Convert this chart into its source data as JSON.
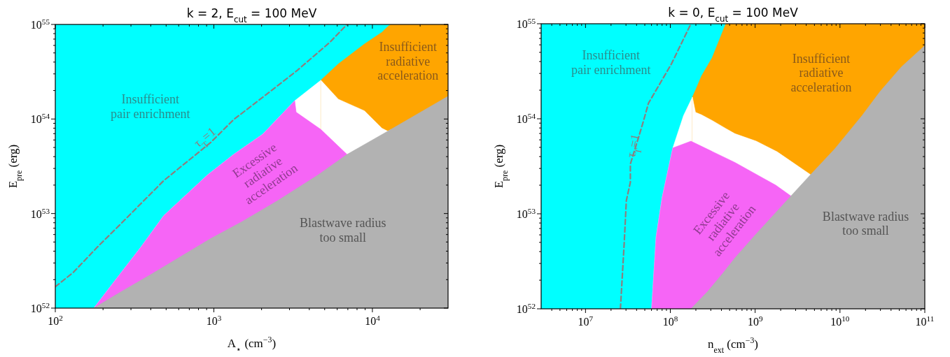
{
  "chart_data": [
    {
      "type": "area",
      "title": "k = 2, E$_{cut}$ = 100 MeV",
      "xlabel": "A$_{⋆}$ (cm$^{−3}$)",
      "ylabel": "E$_{pre}$ (erg)",
      "log": "xy",
      "xlim": [
        100,
        30000
      ],
      "ylim": [
        1e+52,
        1e+55
      ],
      "xticks": [
        {
          "value": 100,
          "label": "10$^{2}$"
        },
        {
          "value": 200,
          "label": null
        },
        {
          "value": 300,
          "label": null
        },
        {
          "value": 400,
          "label": null
        },
        {
          "value": 500,
          "label": null
        },
        {
          "value": 600,
          "label": null
        },
        {
          "value": 700,
          "label": null
        },
        {
          "value": 800,
          "label": null
        },
        {
          "value": 900,
          "label": null
        },
        {
          "value": 1000,
          "label": "10$^{3}$"
        },
        {
          "value": 2000,
          "label": null
        },
        {
          "value": 3000,
          "label": null
        },
        {
          "value": 4000,
          "label": null
        },
        {
          "value": 5000,
          "label": null
        },
        {
          "value": 6000,
          "label": null
        },
        {
          "value": 7000,
          "label": null
        },
        {
          "value": 8000,
          "label": null
        },
        {
          "value": 9000,
          "label": null
        },
        {
          "value": 10000,
          "label": "10$^{4}$"
        },
        {
          "value": 20000,
          "label": null
        }
      ],
      "yticks": [
        {
          "value": 1e+52,
          "label": "10$^{52}$"
        },
        {
          "value": 2e+52,
          "label": null
        },
        {
          "value": 3e+52,
          "label": null
        },
        {
          "value": 4e+52,
          "label": null
        },
        {
          "value": 5e+52,
          "label": null
        },
        {
          "value": 6e+52,
          "label": null
        },
        {
          "value": 7e+52,
          "label": null
        },
        {
          "value": 8e+52,
          "label": null
        },
        {
          "value": 9e+52,
          "label": null
        },
        {
          "value": 1e+53,
          "label": "10$^{53}$"
        },
        {
          "value": 2e+53,
          "label": null
        },
        {
          "value": 3e+53,
          "label": null
        },
        {
          "value": 4e+53,
          "label": null
        },
        {
          "value": 5e+53,
          "label": null
        },
        {
          "value": 6e+53,
          "label": null
        },
        {
          "value": 7e+53,
          "label": null
        },
        {
          "value": 8e+53,
          "label": null
        },
        {
          "value": 9e+53,
          "label": null
        },
        {
          "value": 1e+54,
          "label": "10$^{54}$"
        },
        {
          "value": 2e+54,
          "label": null
        },
        {
          "value": 3e+54,
          "label": null
        },
        {
          "value": 4e+54,
          "label": null
        },
        {
          "value": 5e+54,
          "label": null
        },
        {
          "value": 6e+54,
          "label": null
        },
        {
          "value": 7e+54,
          "label": null
        },
        {
          "value": 8e+54,
          "label": null
        },
        {
          "value": 9e+54,
          "label": null
        },
        {
          "value": 1e+55,
          "label": "10$^{55}$"
        }
      ],
      "series": [
        {
          "type": "area",
          "color": "#00ffff",
          "x": [
            100,
            13060
          ],
          "values": [
            1e+55,
            1e+55
          ]
        },
        {
          "type": "area",
          "color": "#ffffff",
          "x": [
            175,
            257,
            345,
            483,
            912,
            1334,
            2032,
            3236,
            4732
          ],
          "values": [
            1e+52,
            2.31e+52,
            4.37e+52,
            9.5e+52,
            2.56e+53,
            4.22e+53,
            6.9e+53,
            1.56e+54,
            2.57e+54
          ]
        },
        {
          "type": "area",
          "color": "#ffa500",
          "x": [
            4732,
            6095,
            8913,
            11480,
            12500,
            13060,
            30000
          ],
          "values": [
            2.57e+54,
            3.82e+54,
            6.22e+54,
            8.26e+54,
            9.5e+54,
            1e+55,
            1e+55
          ]
        },
        {
          "type": "area",
          "color": "#ffffff",
          "x": [
            4732,
            6095,
            8913,
            11480,
            12500,
            13060
          ],
          "values": [
            2.57e+54,
            1.62e+54,
            1.22e+54,
            7.98e+53,
            7.43e+53,
            7.69e+53
          ]
        },
        {
          "type": "area",
          "color": "#f665f6",
          "x": [
            175,
            257,
            345,
            483,
            912,
            1334,
            2032,
            3236,
            3304,
            4732,
            6918
          ],
          "values": [
            1e+52,
            2.31e+52,
            4.37e+52,
            9.5e+52,
            2.56e+53,
            4.22e+53,
            6.9e+53,
            1.56e+54,
            1.18e+54,
            7.75e+53,
            4.22e+53
          ]
        },
        {
          "type": "area",
          "color": "#b2b2b2",
          "x": [
            175,
            246,
            408,
            622,
            950,
            1514,
            2512,
            4540,
            6918,
            12500,
            30000
          ],
          "values": [
            1e+52,
            1.41e+52,
            2.31e+52,
            3.53e+52,
            5.41e+52,
            8.26e+52,
            1.36e+53,
            2.56e+53,
            4.22e+53,
            7.43e+53,
            1.74e+54
          ]
        },
        {
          "type": "line",
          "color": "#8c7f7f",
          "line_style": "dashed",
          "x": [
            100,
            130,
            183,
            257,
            483,
            950,
            1334,
            2307,
            3373,
            5370,
            6918
          ],
          "values": [
            1.68e+52,
            2.39e+52,
            4.37e+52,
            7.69e+52,
            2.23e+53,
            5.6e+53,
            9.86e+53,
            2e+54,
            3.29e+54,
            6.44e+54,
            1e+55
          ]
        }
      ],
      "annotations": [
        "Insufficient\npair enrichment",
        "τ$_{T}$=1",
        "Excessive\nradiative\nacceleration",
        "Insufficient\nradiative\nacceleration",
        "Blastwave radius\ntoo small"
      ]
    },
    {
      "type": "area",
      "title": "k = 0, E$_{cut}$ = 100 MeV",
      "xlabel": "n$_{ext}$ (cm$^{−3}$)",
      "ylabel": "E$_{pre}$ (erg)",
      "log": "xy",
      "xlim": [
        3000000.0,
        100000000000.0
      ],
      "ylim": [
        1e+52,
        1e+55
      ],
      "xticks": [
        {
          "value": 4000000.0,
          "label": null
        },
        {
          "value": 5000000.0,
          "label": null
        },
        {
          "value": 6000000.0,
          "label": null
        },
        {
          "value": 7000000.0,
          "label": null
        },
        {
          "value": 8000000.0,
          "label": null
        },
        {
          "value": 9000000.0,
          "label": null
        },
        {
          "value": 10000000.0,
          "label": "10$^{7}$"
        },
        {
          "value": 20000000.0,
          "label": null
        },
        {
          "value": 30000000.0,
          "label": null
        },
        {
          "value": 40000000.0,
          "label": null
        },
        {
          "value": 50000000.0,
          "label": null
        },
        {
          "value": 60000000.0,
          "label": null
        },
        {
          "value": 70000000.0,
          "label": null
        },
        {
          "value": 80000000.0,
          "label": null
        },
        {
          "value": 90000000.0,
          "label": null
        },
        {
          "value": 100000000.0,
          "label": "10$^{8}$"
        },
        {
          "value": 200000000.0,
          "label": null
        },
        {
          "value": 300000000.0,
          "label": null
        },
        {
          "value": 400000000.0,
          "label": null
        },
        {
          "value": 500000000.0,
          "label": null
        },
        {
          "value": 600000000.0,
          "label": null
        },
        {
          "value": 700000000.0,
          "label": null
        },
        {
          "value": 800000000.0,
          "label": null
        },
        {
          "value": 900000000.0,
          "label": null
        },
        {
          "value": 1000000000.0,
          "label": "10$^{9}$"
        },
        {
          "value": 2000000000.0,
          "label": null
        },
        {
          "value": 3000000000.0,
          "label": null
        },
        {
          "value": 4000000000.0,
          "label": null
        },
        {
          "value": 5000000000.0,
          "label": null
        },
        {
          "value": 6000000000.0,
          "label": null
        },
        {
          "value": 7000000000.0,
          "label": null
        },
        {
          "value": 8000000000.0,
          "label": null
        },
        {
          "value": 9000000000.0,
          "label": null
        },
        {
          "value": 10000000000.0,
          "label": "10$^{10}$"
        },
        {
          "value": 20000000000.0,
          "label": null
        },
        {
          "value": 30000000000.0,
          "label": null
        },
        {
          "value": 40000000000.0,
          "label": null
        },
        {
          "value": 50000000000.0,
          "label": null
        },
        {
          "value": 60000000000.0,
          "label": null
        },
        {
          "value": 70000000000.0,
          "label": null
        },
        {
          "value": 80000000000.0,
          "label": null
        },
        {
          "value": 90000000000.0,
          "label": null
        },
        {
          "value": 100000000000.0,
          "label": "10$^{11}$"
        }
      ],
      "yticks": [
        {
          "value": 1e+52,
          "label": "10$^{52}$"
        },
        {
          "value": 2e+52,
          "label": null
        },
        {
          "value": 3e+52,
          "label": null
        },
        {
          "value": 4e+52,
          "label": null
        },
        {
          "value": 5e+52,
          "label": null
        },
        {
          "value": 6e+52,
          "label": null
        },
        {
          "value": 7e+52,
          "label": null
        },
        {
          "value": 8e+52,
          "label": null
        },
        {
          "value": 9e+52,
          "label": null
        },
        {
          "value": 1e+53,
          "label": "10$^{53}$"
        },
        {
          "value": 2e+53,
          "label": null
        },
        {
          "value": 3e+53,
          "label": null
        },
        {
          "value": 4e+53,
          "label": null
        },
        {
          "value": 5e+53,
          "label": null
        },
        {
          "value": 6e+53,
          "label": null
        },
        {
          "value": 7e+53,
          "label": null
        },
        {
          "value": 8e+53,
          "label": null
        },
        {
          "value": 9e+53,
          "label": null
        },
        {
          "value": 1e+54,
          "label": "10$^{54}$"
        },
        {
          "value": 2e+54,
          "label": null
        },
        {
          "value": 3e+54,
          "label": null
        },
        {
          "value": 4e+54,
          "label": null
        },
        {
          "value": 5e+54,
          "label": null
        },
        {
          "value": 6e+54,
          "label": null
        },
        {
          "value": 7e+54,
          "label": null
        },
        {
          "value": 8e+54,
          "label": null
        },
        {
          "value": 9e+54,
          "label": null
        },
        {
          "value": 1e+55,
          "label": "10$^{55}$"
        }
      ],
      "series": [
        {
          "type": "area",
          "color": "#00ffff",
          "x": [
            3000000.0,
            451000000.0
          ],
          "values": [
            1e+55,
            1e+55
          ]
        },
        {
          "type": "area",
          "color": "#ffffff",
          "x": [
            60200000.0,
            68000000.0,
            80200000.0,
            107000000.0,
            143000000.0,
            182000000.0
          ],
          "values": [
            1e+52,
            5.72e+52,
            1.49e+53,
            4.93e+53,
            1.08e+54,
            1.69e+54
          ]
        },
        {
          "type": "area",
          "color": "#ffa500",
          "x": [
            182000000.0,
            198000000.0,
            233000000.0,
            311000000.0,
            451000000.0,
            577000000.0,
            1030000000.0,
            1820000000.0,
            4500000000.0,
            8700000000.0,
            18200000000.0,
            29900000000.0,
            53000000000.0,
            100000000000.0
          ],
          "values": [
            1.69e+54,
            2e+54,
            2.82e+54,
            4.38e+54,
            1e+55,
            1e+55,
            1e+55,
            1e+55,
            1e+55,
            1e+55,
            1e+55,
            1e+55,
            1e+55,
            1e+55
          ]
        },
        {
          "type": "area",
          "color": "#ffffff",
          "x": [
            182000000.0,
            198000000.0,
            233000000.0,
            311000000.0,
            451000000.0,
            577000000.0,
            1030000000.0,
            1820000000.0,
            4500000000.0
          ],
          "values": [
            1.69e+54,
            1.17e+54,
            1.1e+54,
            9.6e+53,
            7.9e+53,
            6.97e+53,
            5.81e+53,
            4.49e+53,
            2.58e+53
          ]
        },
        {
          "type": "area",
          "color": "#f665f6",
          "x": [
            60200000.0,
            68000000.0,
            80200000.0,
            107000000.0,
            175000000.0,
            577000000.0,
            1750000000.0,
            2640000000.0
          ],
          "values": [
            1e+52,
            5.72e+52,
            1.49e+53,
            4.93e+53,
            5.81e+53,
            3.47e+53,
            2e+53,
            1.54e+53
          ]
        },
        {
          "type": "area",
          "color": "#b2b2b2",
          "x": [
            175000000.0,
            275000000.0,
            415000000.0,
            577000000.0,
            1030000000.0,
            1750000000.0,
            2750000000.0,
            4500000000.0,
            8700000000.0,
            18200000000.0,
            29900000000.0,
            53000000000.0,
            100000000000.0
          ],
          "values": [
            1e+52,
            1.52e+52,
            2.36e+52,
            3.42e+52,
            6.15e+52,
            1.03e+53,
            1.6e+53,
            2.58e+53,
            4.83e+53,
            1.08e+54,
            1.95e+54,
            3.52e+54,
            5.89e+54
          ]
        },
        {
          "type": "line",
          "color": "#8c7f7f",
          "line_style": "dashed",
          "x": [
            25800000.0,
            28600000.0,
            30300000.0,
            33800000.0,
            33800000.0,
            46900000.0,
            55300000.0,
            73800000.0,
            103000000.0,
            175000000.0
          ],
          "values": [
            1e+52,
            4.94e+52,
            1.38e+53,
            2.15e+53,
            3.34e+53,
            8.69e+53,
            1.46e+54,
            2.27e+54,
            3.78e+54,
            1e+55
          ]
        }
      ],
      "annotations": [
        "Insufficient\npair enrichment",
        "τ$_{T}$=1",
        "Excessive\nradiative\nacceleration",
        "Insufficient\nradiative\nacceleration",
        "Blastwave radius\ntoo small"
      ]
    }
  ]
}
